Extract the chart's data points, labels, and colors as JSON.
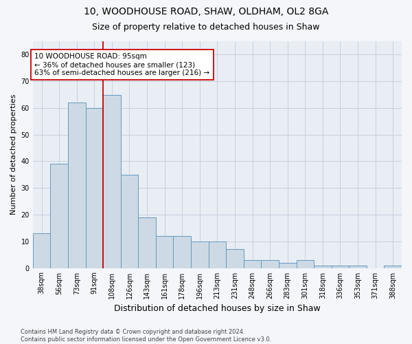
{
  "title": "10, WOODHOUSE ROAD, SHAW, OLDHAM, OL2 8GA",
  "subtitle": "Size of property relative to detached houses in Shaw",
  "xlabel": "Distribution of detached houses by size in Shaw",
  "ylabel": "Number of detached properties",
  "bar_color": "#cdd9e5",
  "bar_edge_color": "#6699bb",
  "categories": [
    "38sqm",
    "56sqm",
    "73sqm",
    "91sqm",
    "108sqm",
    "126sqm",
    "143sqm",
    "161sqm",
    "178sqm",
    "196sqm",
    "213sqm",
    "231sqm",
    "248sqm",
    "266sqm",
    "283sqm",
    "301sqm",
    "318sqm",
    "336sqm",
    "353sqm",
    "371sqm",
    "388sqm"
  ],
  "values": [
    13,
    39,
    62,
    60,
    65,
    35,
    19,
    12,
    12,
    10,
    10,
    7,
    3,
    3,
    2,
    3,
    1,
    1,
    1,
    0,
    1
  ],
  "ylim": [
    0,
    85
  ],
  "yticks": [
    0,
    10,
    20,
    30,
    40,
    50,
    60,
    70,
    80
  ],
  "vertical_line_x": 3.5,
  "annotation_text_line1": "10 WOODHOUSE ROAD: 95sqm",
  "annotation_text_line2": "← 36% of detached houses are smaller (123)",
  "annotation_text_line3": "63% of semi-detached houses are larger (216) →",
  "background_color": "#e8eef4",
  "fig_background_color": "#f4f6fa",
  "grid_color": "#c8d0dc",
  "footnote_line1": "Contains HM Land Registry data © Crown copyright and database right 2024.",
  "footnote_line2": "Contains public sector information licensed under the Open Government Licence v3.0.",
  "title_fontsize": 10,
  "subtitle_fontsize": 9,
  "xlabel_fontsize": 9,
  "ylabel_fontsize": 8,
  "tick_fontsize": 7,
  "annotation_fontsize": 7.5,
  "footnote_fontsize": 6
}
